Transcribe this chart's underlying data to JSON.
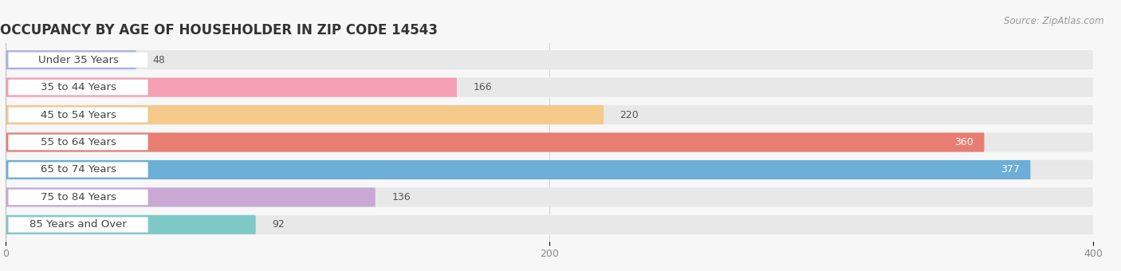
{
  "title": "OCCUPANCY BY AGE OF HOUSEHOLDER IN ZIP CODE 14543",
  "source": "Source: ZipAtlas.com",
  "categories": [
    "Under 35 Years",
    "35 to 44 Years",
    "45 to 54 Years",
    "55 to 64 Years",
    "65 to 74 Years",
    "75 to 84 Years",
    "85 Years and Over"
  ],
  "values": [
    48,
    166,
    220,
    360,
    377,
    136,
    92
  ],
  "bar_colors": [
    "#aab4e8",
    "#f5a0b5",
    "#f5c98a",
    "#e87d72",
    "#6baed6",
    "#c9a8d4",
    "#7fc8c8"
  ],
  "bar_bg_color": "#e8e8e8",
  "xlim": [
    0,
    400
  ],
  "xticks": [
    0,
    200,
    400
  ],
  "title_fontsize": 12,
  "label_fontsize": 9.5,
  "value_fontsize": 9,
  "background_color": "#f7f7f7"
}
